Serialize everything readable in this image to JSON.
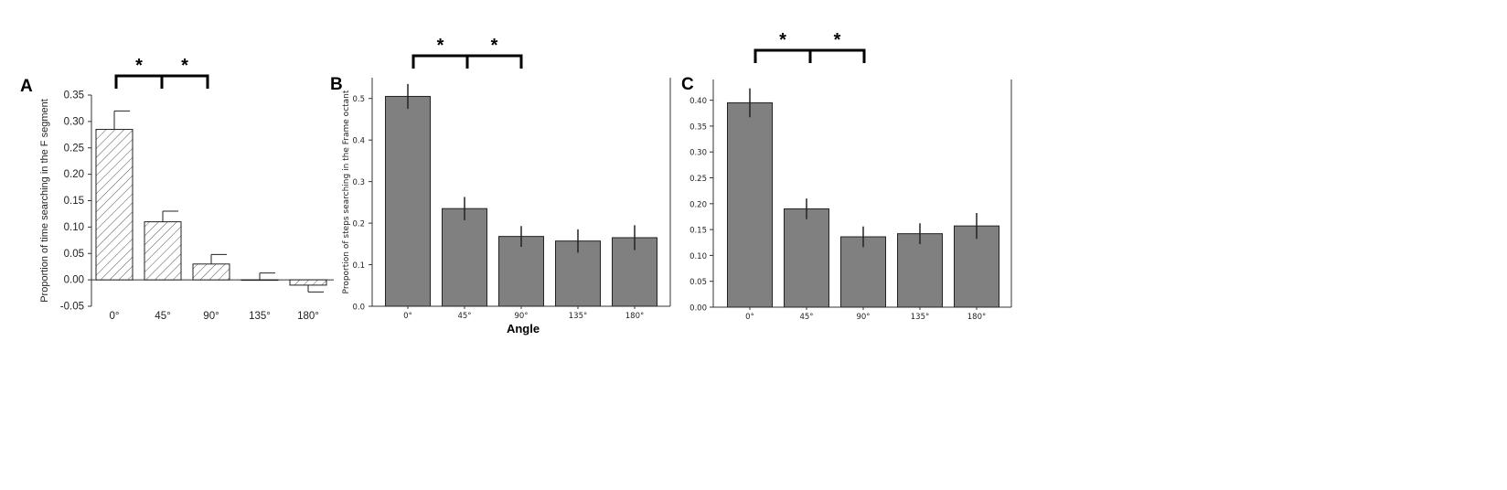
{
  "chart_data": [
    {
      "panel": "A",
      "type": "bar",
      "categories": [
        "0°",
        "45°",
        "90°",
        "135°",
        "180°"
      ],
      "values": [
        0.285,
        0.11,
        0.03,
        0.0,
        -0.01
      ],
      "errors": [
        0.035,
        0.02,
        0.018,
        0.013,
        0.013
      ],
      "ylabel": "Proportion of time searching in the F segment",
      "xlabel": "",
      "ylim": [
        -0.05,
        0.35
      ],
      "yticks": [
        "0.35",
        "0.30",
        "0.25",
        "0.20",
        "0.15",
        "0.10",
        "0.05",
        "0.00",
        "-0.05"
      ],
      "bar_fill": "hatched",
      "significance": [
        "*",
        "*"
      ]
    },
    {
      "panel": "B",
      "type": "bar",
      "categories": [
        "0°",
        "45°",
        "90°",
        "135°",
        "180°"
      ],
      "values": [
        0.505,
        0.235,
        0.168,
        0.157,
        0.165
      ],
      "errors": [
        0.03,
        0.028,
        0.025,
        0.028,
        0.03
      ],
      "ylabel": "Proportion of steps searching in the Frame octant",
      "xlabel": "Angle",
      "ylim": [
        0.0,
        0.55
      ],
      "yticks": [
        "0.5",
        "0.4",
        "0.3",
        "0.2",
        "0.1",
        "0.0"
      ],
      "bar_color": "#808080",
      "significance": [
        "*",
        "*"
      ]
    },
    {
      "panel": "C",
      "type": "bar",
      "categories": [
        "0°",
        "45°",
        "90°",
        "135°",
        "180°"
      ],
      "values": [
        0.395,
        0.19,
        0.136,
        0.142,
        0.157
      ],
      "errors": [
        0.028,
        0.02,
        0.02,
        0.02,
        0.025
      ],
      "ylabel": "",
      "xlabel": "",
      "ylim": [
        0.0,
        0.44
      ],
      "yticks": [
        "0.40",
        "0.35",
        "0.30",
        "0.25",
        "0.20",
        "0.15",
        "0.10",
        "0.05",
        "0.00"
      ],
      "bar_color": "#808080",
      "significance": [
        "*",
        "*"
      ]
    }
  ]
}
